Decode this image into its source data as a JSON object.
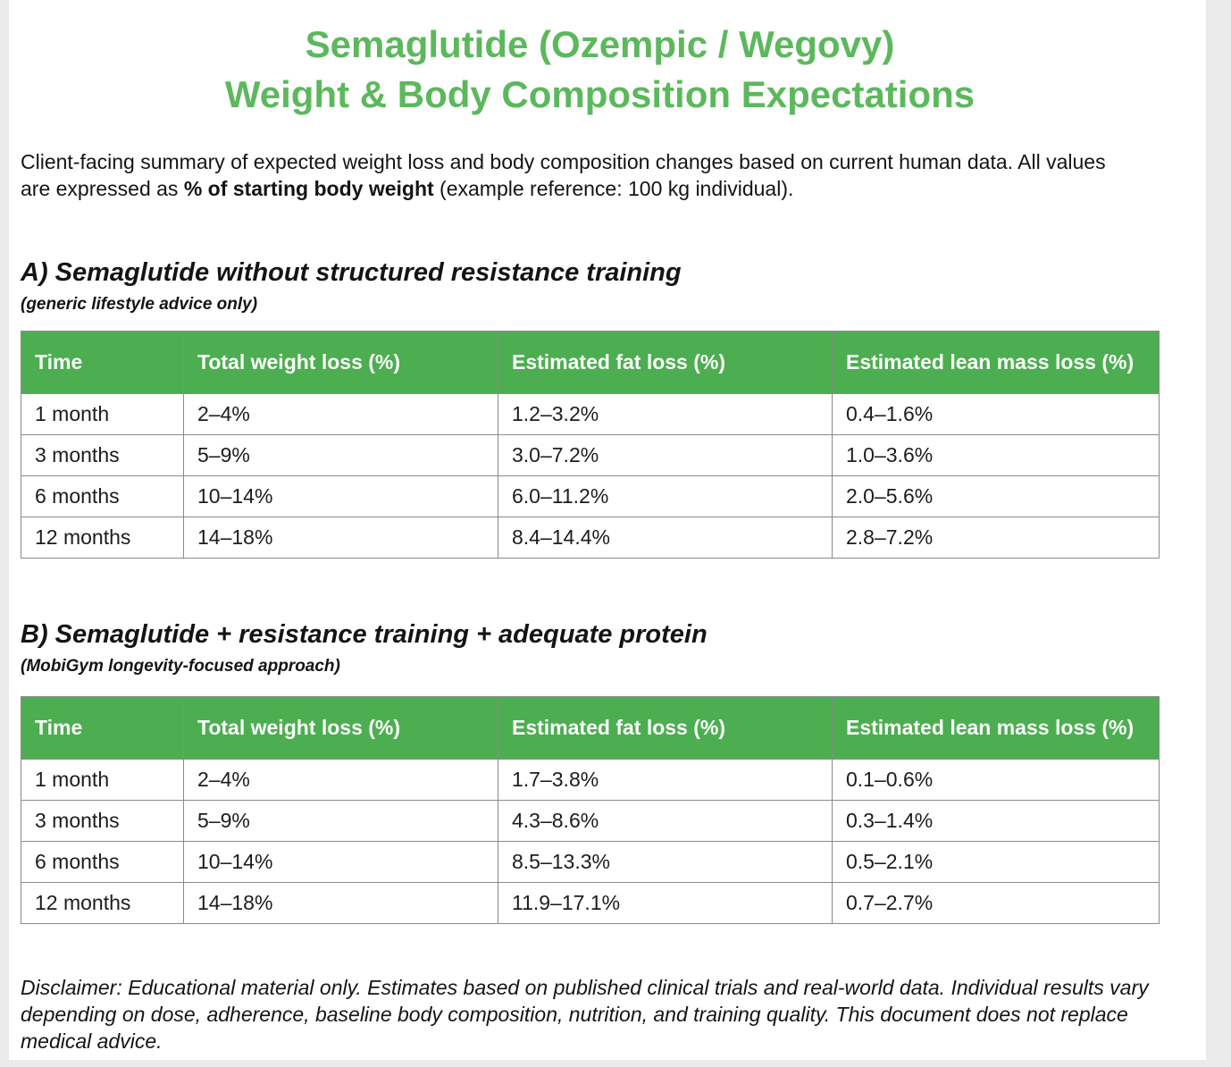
{
  "page": {
    "title_line1": "Semaglutide (Ozempic / Wegovy)",
    "title_line2": "Weight & Body Composition Expectations",
    "intro": {
      "prefix": "Client-facing summary of expected weight loss and body composition changes based on current human data. All values are expressed as ",
      "bold": "% of starting body weight",
      "suffix": " (example reference: 100 kg individual)."
    },
    "disclaimer": "Disclaimer: Educational material only. Estimates based on published clinical trials and real-world data. Individual results vary depending on dose, adherence, baseline body composition, nutrition, and training quality. This document does not replace medical advice."
  },
  "colors": {
    "title_green": "#5cb85c",
    "table_header_green": "#4cae50",
    "border_gray": "#8a8a8a"
  },
  "sections": [
    {
      "heading": "A) Semaglutide without structured resistance training",
      "subheading": "(generic lifestyle advice only)",
      "table": {
        "columns": [
          "Time",
          "Total weight loss (%)",
          "Estimated fat loss (%)",
          "Estimated lean mass loss (%)"
        ],
        "rows": [
          [
            "1 month",
            "2–4%",
            "1.2–3.2%",
            "0.4–1.6%"
          ],
          [
            "3 months",
            "5–9%",
            "3.0–7.2%",
            "1.0–3.6%"
          ],
          [
            "6 months",
            "10–14%",
            "6.0–11.2%",
            "2.0–5.6%"
          ],
          [
            "12 months",
            "14–18%",
            "8.4–14.4%",
            "2.8–7.2%"
          ]
        ]
      }
    },
    {
      "heading": "B) Semaglutide + resistance training + adequate protein",
      "subheading": "(MobiGym longevity-focused approach)",
      "table": {
        "columns": [
          "Time",
          "Total weight loss (%)",
          "Estimated fat loss (%)",
          "Estimated lean mass loss (%)"
        ],
        "rows": [
          [
            "1 month",
            "2–4%",
            "1.7–3.8%",
            "0.1–0.6%"
          ],
          [
            "3 months",
            "5–9%",
            "4.3–8.6%",
            "0.3–1.4%"
          ],
          [
            "6 months",
            "10–14%",
            "8.5–13.3%",
            "0.5–2.1%"
          ],
          [
            "12 months",
            "14–18%",
            "11.9–17.1%",
            "0.7–2.7%"
          ]
        ]
      }
    }
  ]
}
